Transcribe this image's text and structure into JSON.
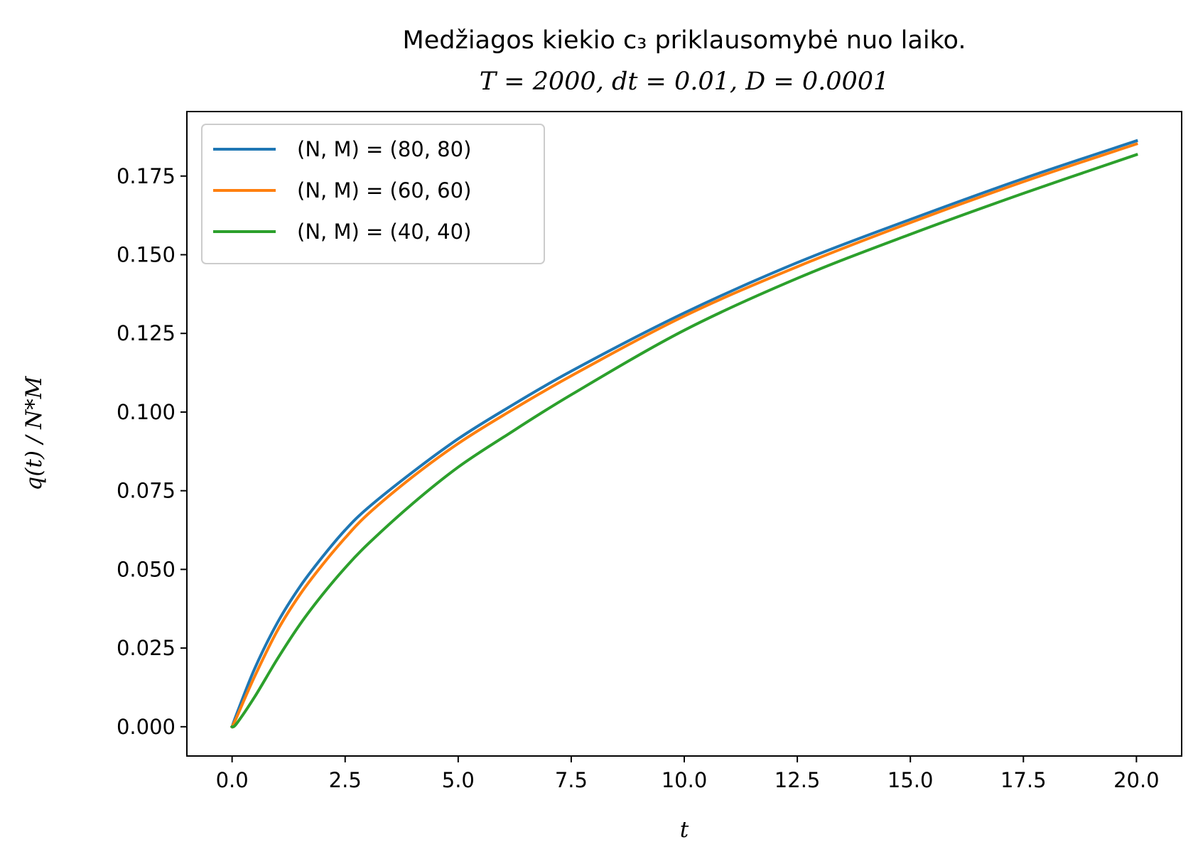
{
  "chart_data": {
    "type": "line",
    "title": "Medžiagos kiekio c₃ priklausomybė nuo laiko.",
    "subtitle": "T = 2000, dt = 0.01, D = 0.0001",
    "xlabel": "t",
    "ylabel": "q(t) / N*M",
    "xlim": [
      -1.0,
      21.0
    ],
    "ylim": [
      -0.0093,
      0.1955
    ],
    "xticks": [
      0.0,
      2.5,
      5.0,
      7.5,
      10.0,
      12.5,
      15.0,
      17.5,
      20.0
    ],
    "xtick_labels": [
      "0.0",
      "2.5",
      "5.0",
      "7.5",
      "10.0",
      "12.5",
      "15.0",
      "17.5",
      "20.0"
    ],
    "yticks": [
      0.0,
      0.025,
      0.05,
      0.075,
      0.1,
      0.125,
      0.15,
      0.175
    ],
    "ytick_labels": [
      "0.000",
      "0.025",
      "0.050",
      "0.075",
      "0.100",
      "0.125",
      "0.150",
      "0.175"
    ],
    "grid": false,
    "legend_position": "top-left",
    "x": [
      0,
      0.1,
      0.5,
      1,
      1.5,
      2,
      2.5,
      3,
      4,
      5,
      6,
      7.5,
      10,
      12.5,
      15,
      17.5,
      20
    ],
    "series": [
      {
        "name": "(N, M) = (80, 80)",
        "color": "#1f77b4",
        "values": [
          0.0,
          0.004,
          0.0185,
          0.033,
          0.0445,
          0.054,
          0.0625,
          0.0695,
          0.081,
          0.0915,
          0.1005,
          0.113,
          0.1315,
          0.1475,
          0.1612,
          0.1742,
          0.1862
        ]
      },
      {
        "name": "(N, M) = (60, 60)",
        "color": "#ff7f0e",
        "values": [
          0.0,
          0.003,
          0.016,
          0.0305,
          0.042,
          0.0515,
          0.06,
          0.0675,
          0.0795,
          0.09,
          0.099,
          0.1115,
          0.1305,
          0.1462,
          0.1602,
          0.1732,
          0.1852
        ]
      },
      {
        "name": "(N, M) = (40, 40)",
        "color": "#2ca02c",
        "values": [
          0.0,
          0.001,
          0.0095,
          0.0215,
          0.0325,
          0.042,
          0.0505,
          0.058,
          0.071,
          0.0825,
          0.092,
          0.1055,
          0.126,
          0.1425,
          0.1565,
          0.1695,
          0.1818
        ]
      }
    ]
  }
}
